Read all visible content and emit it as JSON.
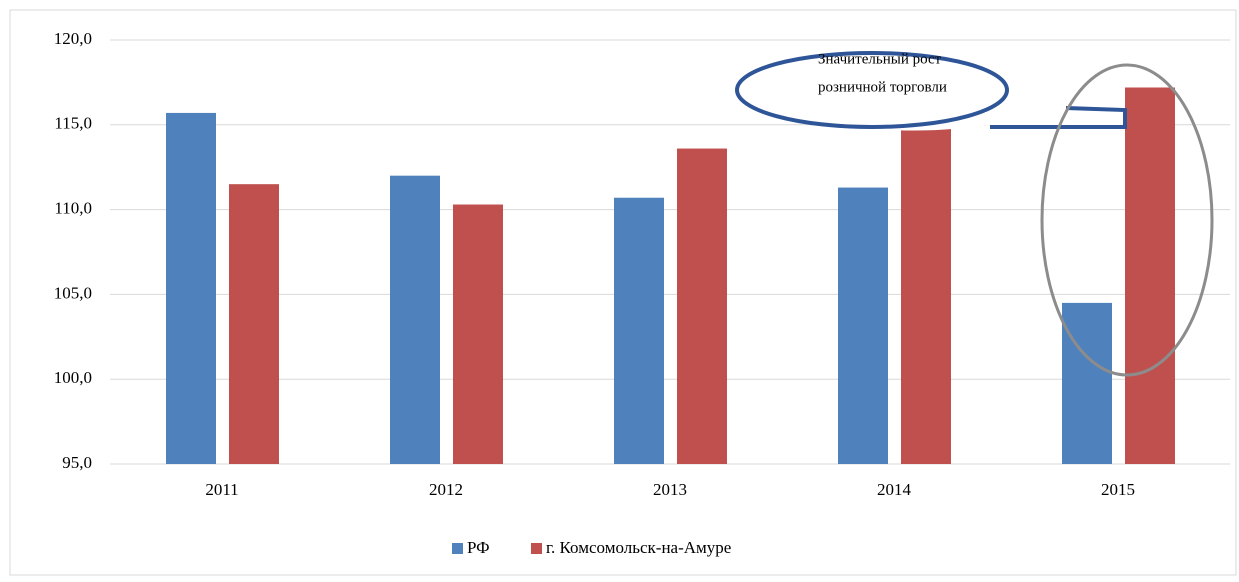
{
  "chart_data": {
    "type": "bar",
    "categories": [
      "2011",
      "2012",
      "2013",
      "2014",
      "2015"
    ],
    "series": [
      {
        "name": "РФ",
        "color": "#4f81bd",
        "values": [
          115.7,
          112.0,
          110.7,
          111.3,
          104.5
        ]
      },
      {
        "name": "г. Комсомольск-на-Амуре",
        "color": "#c0504d",
        "values": [
          111.5,
          110.3,
          113.6,
          114.8,
          117.2
        ]
      }
    ],
    "ylim": [
      95,
      120
    ],
    "yticks": [
      {
        "value": 95,
        "label": "95,0"
      },
      {
        "value": 100,
        "label": "100,0"
      },
      {
        "value": 105,
        "label": "105,0"
      },
      {
        "value": 110,
        "label": "110,0"
      },
      {
        "value": 115,
        "label": "115,0"
      },
      {
        "value": 120,
        "label": "120,0"
      }
    ],
    "grid": true,
    "legend": "bottom",
    "annotation": [
      "Значительный рост",
      "розничной торговли"
    ]
  }
}
